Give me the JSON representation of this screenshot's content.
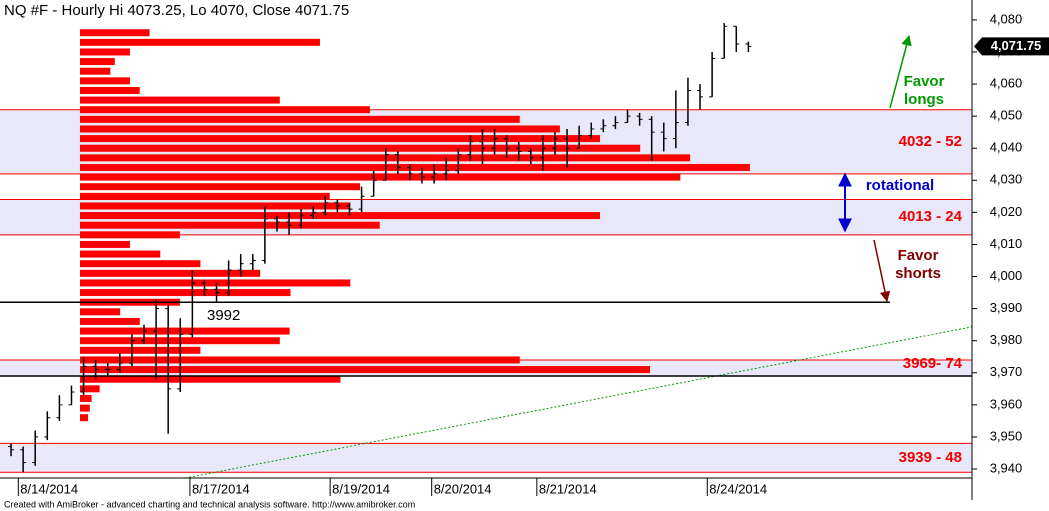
{
  "chart_data": {
    "type": "ohlc",
    "title": "NQ #F - Hourly Hi 4073.25, Lo 4070, Close 4071.75",
    "footer": "Created with AmiBroker - advanced charting and technical analysis software. http://www.amibroker.com",
    "x": [
      0,
      1,
      2,
      3,
      4,
      5,
      6,
      7,
      8,
      9,
      10,
      11,
      12,
      13,
      14,
      15,
      16,
      17,
      18,
      19,
      20,
      21,
      22,
      23,
      24,
      25,
      26,
      27,
      28,
      29,
      30,
      31,
      32,
      33,
      34,
      35,
      36,
      37,
      38,
      39,
      40,
      41,
      42,
      43,
      44,
      45,
      46,
      47,
      48,
      49,
      50,
      51,
      52,
      53,
      54,
      55,
      56,
      57,
      58,
      59,
      60,
      61
    ],
    "open": [
      3947,
      3946,
      3942,
      3950,
      3956,
      3960,
      3964,
      3972,
      3971,
      3971,
      3973,
      3980,
      3983,
      3990,
      3965,
      3982,
      3998,
      3996,
      3995,
      4002,
      4004,
      4005,
      4018,
      4017,
      4016,
      4019,
      4020,
      4023,
      4022,
      4021,
      4025,
      4030,
      4038,
      4034,
      4032,
      4031,
      4032,
      4033,
      4038,
      4042,
      4040,
      4043,
      4040,
      4039,
      4037,
      4040,
      4043,
      4040,
      4044,
      4046,
      4047,
      4048,
      4050,
      4049,
      4045,
      4043,
      4048,
      4058,
      4056,
      4068,
      4078,
      4072.5
    ],
    "high": [
      3948,
      3947,
      3952,
      3958,
      3963,
      3966,
      3975,
      3974,
      3973,
      3976,
      3982,
      3985,
      3993,
      3991,
      3987,
      4002,
      3999,
      3998,
      4005,
      4007,
      4007,
      4022,
      4019,
      4020,
      4021,
      4022,
      4025,
      4024,
      4023,
      4028,
      4033,
      4040,
      4039,
      4035,
      4034,
      4035,
      4037,
      4040,
      4044,
      4046,
      4046,
      4044,
      4042,
      4040,
      4044,
      4045,
      4046,
      4047,
      4048,
      4049,
      4050,
      4052,
      4051,
      4050,
      4048,
      4058,
      4062,
      4060,
      4070,
      4079,
      4078,
      4073.25
    ],
    "low": [
      3944,
      3939,
      3941,
      3949,
      3955,
      3960,
      3963,
      3968,
      3969,
      3970,
      3972,
      3979,
      3968,
      3951,
      3964,
      3981,
      3994,
      3992,
      3994,
      4000,
      4002,
      4004,
      4014,
      4013,
      4015,
      4018,
      4019,
      4020,
      4019,
      4020,
      4025,
      4030,
      4032,
      4030,
      4029,
      4029,
      4030,
      4032,
      4036,
      4035,
      4038,
      4037,
      4036,
      4035,
      4033,
      4038,
      4034,
      4040,
      4043,
      4045,
      4046,
      4048,
      4047,
      4036,
      4039,
      4040,
      4047,
      4052,
      4056,
      4068,
      4070,
      4070
    ],
    "close": [
      3946,
      3942,
      3950,
      3956,
      3960,
      3964,
      3972,
      3971,
      3971,
      3973,
      3980,
      3983,
      3990,
      3965,
      3982,
      3998,
      3996,
      3995,
      4002,
      4004,
      4005,
      4018,
      4017,
      4016,
      4019,
      4020,
      4023,
      4022,
      4021,
      4025,
      4030,
      4038,
      4034,
      4032,
      4031,
      4032,
      4033,
      4038,
      4042,
      4040,
      4043,
      4040,
      4039,
      4037,
      4040,
      4043,
      4040,
      4044,
      4046,
      4047,
      4048,
      4050,
      4049,
      4045,
      4043,
      4048,
      4058,
      4056,
      4068,
      4078,
      4072.5,
      4071.75
    ],
    "bar_color": "#000000",
    "xlim": [
      -0.5,
      79.5
    ],
    "xticks": [
      {
        "value": 0.6,
        "label": "8/14/2014"
      },
      {
        "value": 14.8,
        "label": "8/17/2014"
      },
      {
        "value": 26.4,
        "label": "8/19/2014"
      },
      {
        "value": 34.8,
        "label": "8/20/2014"
      },
      {
        "value": 43.5,
        "label": "8/21/2014"
      },
      {
        "value": 57.6,
        "label": "8/24/2014"
      }
    ],
    "ylim": [
      3937.2,
      4086.2
    ],
    "yticks": [
      {
        "value": 3940,
        "label": "3,940"
      },
      {
        "value": 3950,
        "label": "3,950"
      },
      {
        "value": 3960,
        "label": "3,960"
      },
      {
        "value": 3970,
        "label": "3,970"
      },
      {
        "value": 3980,
        "label": "3,980"
      },
      {
        "value": 3990,
        "label": "3,990"
      },
      {
        "value": 4000,
        "label": "4,000"
      },
      {
        "value": 4010,
        "label": "4,010"
      },
      {
        "value": 4020,
        "label": "4,020"
      },
      {
        "value": 4030,
        "label": "4,030"
      },
      {
        "value": 4040,
        "label": "4,040"
      },
      {
        "value": 4050,
        "label": "4,050"
      },
      {
        "value": 4060,
        "label": "4,060"
      },
      {
        "value": 4070,
        "label": "4,070"
      },
      {
        "value": 4080,
        "label": "4,080"
      }
    ],
    "last_price": {
      "value": 4071.75,
      "label": "4,071.75"
    },
    "profile": {
      "color": "#ff0000",
      "xlim": [
        0,
        1000
      ],
      "prices": [
        3956,
        3959,
        3962,
        3965,
        3968,
        3971,
        3974,
        3977,
        3980,
        3983,
        3986,
        3989,
        3992,
        3995,
        3998,
        4001,
        4004,
        4007,
        4010,
        4013,
        4016,
        4019,
        4022,
        4025,
        4028,
        4031,
        4034,
        4037,
        4040,
        4043,
        4046,
        4049,
        4052,
        4055,
        4058,
        4061,
        4064,
        4067,
        4070,
        4073,
        4076
      ],
      "values": [
        9,
        11,
        13,
        22,
        292,
        639,
        493,
        135,
        224,
        235,
        67,
        45,
        112,
        236,
        303,
        202,
        135,
        90,
        56,
        112,
        336,
        583,
        303,
        280,
        314,
        673,
        751,
        684,
        628,
        583,
        538,
        493,
        325,
        224,
        67,
        56,
        34,
        39,
        56,
        269,
        78
      ]
    },
    "zones": [
      {
        "low": 4032,
        "high": 4052,
        "label": "4032 - 52"
      },
      {
        "low": 4013,
        "high": 4024,
        "label": "4013 - 24"
      },
      {
        "low": 3969,
        "high": 3974,
        "label": "3969- 74"
      },
      {
        "low": 3939,
        "high": 3948,
        "label": "3939 - 48"
      }
    ],
    "zone_color": "#e8e8f8",
    "zone_border_color": "#ff0000",
    "zone_label_color": "#ee0000",
    "levels": [
      {
        "value": 3992,
        "label": "3992"
      },
      {
        "value": 3969
      }
    ],
    "moving_average": {
      "color": "#009900",
      "x": [
        14.4,
        79.5
      ],
      "values": [
        3937.2,
        3984.3
      ]
    },
    "annotations": {
      "longs": [
        "Favor",
        "longs"
      ],
      "rotational": "rotational",
      "shorts": [
        "Favor",
        "shorts"
      ]
    }
  }
}
